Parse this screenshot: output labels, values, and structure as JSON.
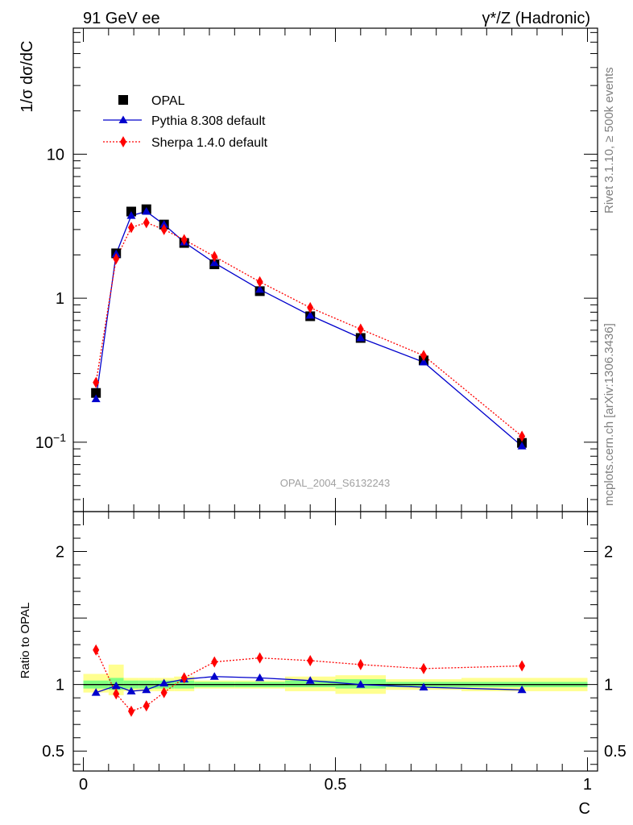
{
  "header": {
    "left_label": "91 GeV ee",
    "right_label": "γ*/Z (Hadronic)"
  },
  "side_labels": {
    "rivet": "Rivet 3.1.10, ≥ 500k events",
    "source": "mcplots.cern.ch [arXiv:1306.3436]"
  },
  "colors": {
    "data": "#000000",
    "pythia": "#0000cc",
    "sherpa": "#ff0000",
    "band_inner": "#80ff80",
    "band_outer": "#ffff90"
  },
  "chart_data": [
    {
      "type": "line",
      "panel": "main",
      "title": "OPAL_2004_S6132243",
      "xlabel": "C",
      "ylabel": "1/σ dσ/dC",
      "yscale": "log",
      "xlim": [
        -0.02,
        1.02
      ],
      "ylim": [
        0.033,
        75
      ],
      "x_ticks": [
        "0",
        "0.5",
        "1"
      ],
      "y_ticks": [
        {
          "value": 0.1,
          "label": "10",
          "exp": "−1"
        },
        {
          "value": 1,
          "label": "1",
          "exp": ""
        },
        {
          "value": 10,
          "label": "10",
          "exp": ""
        }
      ],
      "legend": [
        "OPAL",
        "Pythia 8.308 default",
        "Sherpa 1.4.0 default"
      ],
      "legend_position": "top-left",
      "series": [
        {
          "name": "OPAL",
          "style": "square-markers",
          "x": [
            0.025,
            0.065,
            0.095,
            0.125,
            0.16,
            0.2,
            0.26,
            0.35,
            0.45,
            0.55,
            0.675,
            0.87
          ],
          "values": [
            0.22,
            2.05,
            4.0,
            4.15,
            3.25,
            2.42,
            1.72,
            1.12,
            0.75,
            0.53,
            0.37,
            0.099
          ]
        },
        {
          "name": "Pythia 8.308 default",
          "style": "solid-triangles",
          "x": [
            0.025,
            0.065,
            0.095,
            0.125,
            0.16,
            0.2,
            0.26,
            0.35,
            0.45,
            0.55,
            0.675,
            0.87
          ],
          "values": [
            0.2,
            2.03,
            3.75,
            4.0,
            3.25,
            2.45,
            1.76,
            1.15,
            0.76,
            0.53,
            0.36,
            0.094
          ]
        },
        {
          "name": "Sherpa 1.4.0 default",
          "style": "dotted-diamonds",
          "x": [
            0.025,
            0.065,
            0.095,
            0.125,
            0.16,
            0.2,
            0.26,
            0.35,
            0.45,
            0.55,
            0.675,
            0.87
          ],
          "values": [
            0.26,
            1.88,
            3.1,
            3.35,
            3.0,
            2.55,
            1.95,
            1.3,
            0.86,
            0.61,
            0.4,
            0.11
          ]
        }
      ]
    },
    {
      "type": "line",
      "panel": "ratio",
      "ylabel": "Ratio to OPAL",
      "xlabel": "C",
      "xlim": [
        -0.02,
        1.02
      ],
      "ylim": [
        0.35,
        2.3
      ],
      "y_ticks": [
        {
          "value": 0.5,
          "label": "0.5"
        },
        {
          "value": 1,
          "label": "1"
        },
        {
          "value": 2,
          "label": "2"
        }
      ],
      "x_ticks": [
        "0",
        "0.5",
        "1"
      ],
      "bands": [
        {
          "x0": 0.0,
          "x1": 0.05,
          "inner": [
            0.97,
            1.03
          ],
          "outer": [
            0.94,
            1.08
          ]
        },
        {
          "x0": 0.05,
          "x1": 0.08,
          "inner": [
            0.96,
            1.05
          ],
          "outer": [
            0.92,
            1.15
          ]
        },
        {
          "x0": 0.08,
          "x1": 0.11,
          "inner": [
            0.97,
            1.03
          ],
          "outer": [
            0.95,
            1.05
          ]
        },
        {
          "x0": 0.11,
          "x1": 0.14,
          "inner": [
            0.97,
            1.03
          ],
          "outer": [
            0.95,
            1.05
          ]
        },
        {
          "x0": 0.14,
          "x1": 0.18,
          "inner": [
            0.97,
            1.03
          ],
          "outer": [
            0.95,
            1.05
          ]
        },
        {
          "x0": 0.18,
          "x1": 0.22,
          "inner": [
            0.97,
            1.03
          ],
          "outer": [
            0.95,
            1.06
          ]
        },
        {
          "x0": 0.22,
          "x1": 0.3,
          "inner": [
            0.98,
            1.02
          ],
          "outer": [
            0.97,
            1.03
          ]
        },
        {
          "x0": 0.3,
          "x1": 0.4,
          "inner": [
            0.98,
            1.02
          ],
          "outer": [
            0.97,
            1.03
          ]
        },
        {
          "x0": 0.4,
          "x1": 0.5,
          "inner": [
            0.98,
            1.03
          ],
          "outer": [
            0.95,
            1.06
          ]
        },
        {
          "x0": 0.5,
          "x1": 0.6,
          "inner": [
            0.97,
            1.04
          ],
          "outer": [
            0.93,
            1.07
          ]
        },
        {
          "x0": 0.6,
          "x1": 0.75,
          "inner": [
            0.98,
            1.02
          ],
          "outer": [
            0.96,
            1.04
          ]
        },
        {
          "x0": 0.75,
          "x1": 1.0,
          "inner": [
            0.98,
            1.02
          ],
          "outer": [
            0.95,
            1.05
          ]
        }
      ],
      "series": [
        {
          "name": "Pythia 8.308 default",
          "x": [
            0.025,
            0.065,
            0.095,
            0.125,
            0.16,
            0.2,
            0.26,
            0.35,
            0.45,
            0.55,
            0.675,
            0.87
          ],
          "values": [
            0.94,
            0.99,
            0.95,
            0.96,
            1.01,
            1.04,
            1.06,
            1.05,
            1.03,
            1.0,
            0.98,
            0.96
          ]
        },
        {
          "name": "Sherpa 1.4.0 default",
          "x": [
            0.025,
            0.065,
            0.095,
            0.125,
            0.16,
            0.2,
            0.26,
            0.35,
            0.45,
            0.55,
            0.675,
            0.87
          ],
          "values": [
            1.26,
            0.93,
            0.8,
            0.84,
            0.94,
            1.05,
            1.17,
            1.2,
            1.18,
            1.15,
            1.12,
            1.14
          ]
        }
      ]
    }
  ]
}
